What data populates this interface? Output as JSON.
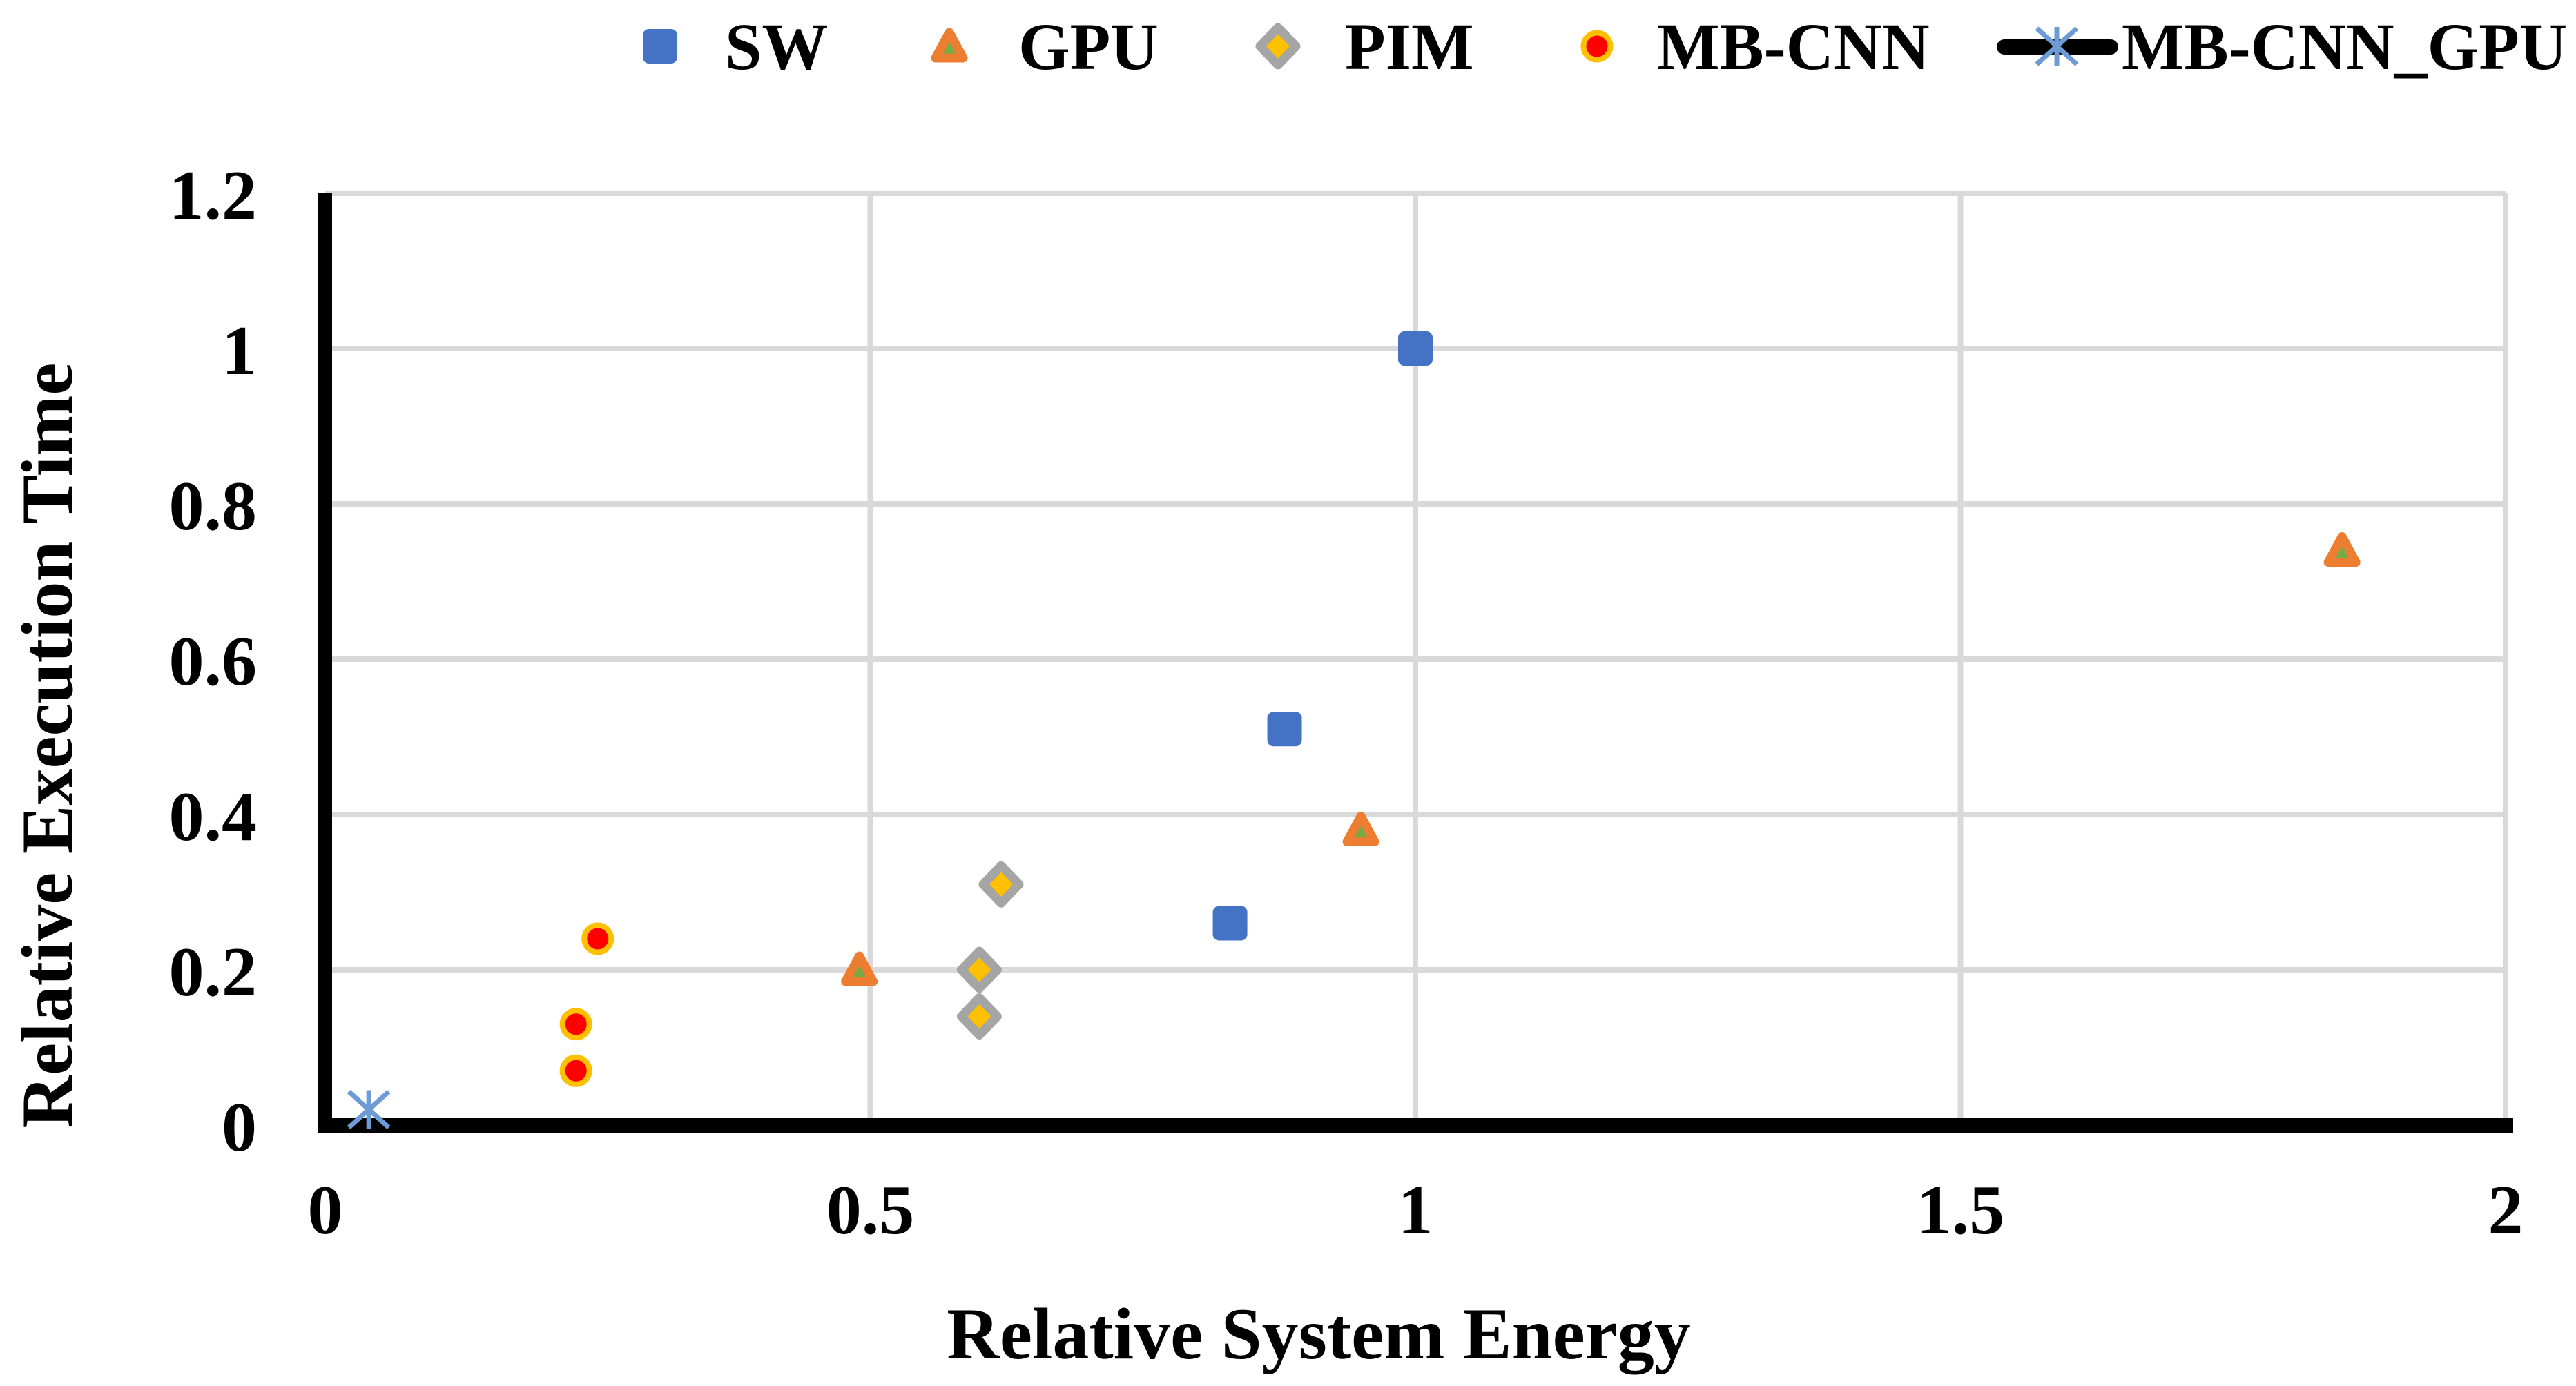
{
  "chart_data": {
    "type": "scatter",
    "title": "",
    "xlabel": "Relative System Energy",
    "ylabel": "Relative Execution Time",
    "xlim": [
      0,
      2
    ],
    "ylim": [
      0,
      1.2
    ],
    "x_ticks": [
      0,
      0.5,
      1,
      1.5,
      2
    ],
    "x_tick_labels": [
      "0",
      "0.5",
      "1",
      "1.5",
      "2"
    ],
    "y_ticks": [
      0,
      0.2,
      0.4,
      0.6,
      0.8,
      1,
      1.2
    ],
    "y_tick_labels": [
      "0",
      "0.2",
      "0.4",
      "0.6",
      "0.8",
      "1",
      "1.2"
    ],
    "grid": true,
    "legend_position": "top",
    "series": [
      {
        "name": "SW",
        "marker": "square",
        "fill": "#4472C4",
        "stroke": "#4472C4",
        "points": [
          [
            1.0,
            1.0
          ],
          [
            0.88,
            0.51
          ],
          [
            0.83,
            0.26
          ]
        ]
      },
      {
        "name": "GPU",
        "marker": "triangle",
        "fill": "#70AD47",
        "stroke": "#ED7D31",
        "points": [
          [
            0.49,
            0.2
          ],
          [
            0.95,
            0.38
          ],
          [
            1.85,
            0.74
          ]
        ]
      },
      {
        "name": "PIM",
        "marker": "diamond",
        "fill": "#FFC000",
        "stroke": "#A5A5A5",
        "points": [
          [
            0.62,
            0.31
          ],
          [
            0.6,
            0.2
          ],
          [
            0.6,
            0.14
          ]
        ]
      },
      {
        "name": "MB-CNN",
        "marker": "circle",
        "fill": "#FF0000",
        "stroke": "#FFC000",
        "points": [
          [
            0.25,
            0.24
          ],
          [
            0.23,
            0.13
          ],
          [
            0.23,
            0.07
          ]
        ]
      },
      {
        "name": "MB-CNN_GPU",
        "marker": "asterisk",
        "fill": "#6C9BD5",
        "stroke": "#6C9BD5",
        "legend_line_color": "#000000",
        "points": [
          [
            0.04,
            0.02
          ]
        ]
      }
    ],
    "colors": {
      "gridline": "#D9D9D9",
      "axis": "#000000",
      "text": "#000000",
      "background": "#FFFFFF"
    }
  }
}
